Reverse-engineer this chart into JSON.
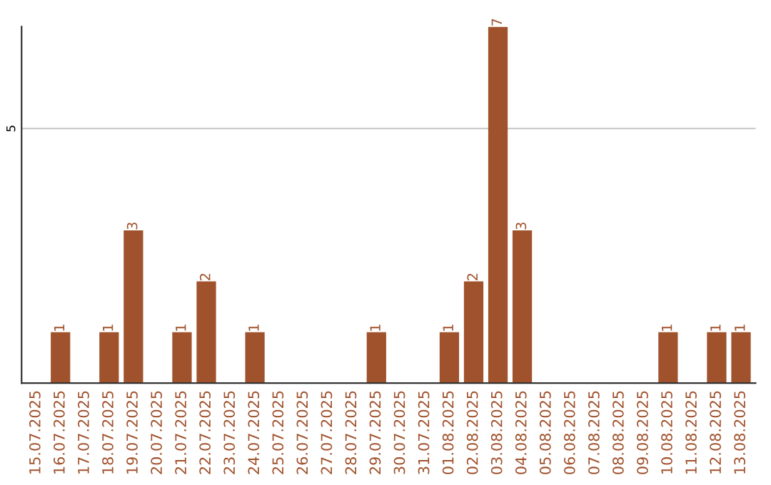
{
  "chart_data": {
    "type": "bar",
    "categories": [
      "15.07.2025",
      "16.07.2025",
      "17.07.2025",
      "18.07.2025",
      "19.07.2025",
      "20.07.2025",
      "21.07.2025",
      "22.07.2025",
      "23.07.2025",
      "24.07.2025",
      "25.07.2025",
      "26.07.2025",
      "27.07.2025",
      "28.07.2025",
      "29.07.2025",
      "30.07.2025",
      "31.07.2025",
      "01.08.2025",
      "02.08.2025",
      "03.08.2025",
      "04.08.2025",
      "05.08.2025",
      "06.08.2025",
      "07.08.2025",
      "08.08.2025",
      "09.08.2025",
      "10.08.2025",
      "11.08.2025",
      "12.08.2025",
      "13.08.2025"
    ],
    "values": [
      0,
      1,
      0,
      1,
      3,
      0,
      1,
      2,
      0,
      1,
      0,
      0,
      0,
      0,
      1,
      0,
      0,
      1,
      2,
      7,
      3,
      0,
      0,
      0,
      0,
      0,
      1,
      0,
      1,
      1
    ],
    "value_labels": [
      null,
      "1",
      null,
      "1",
      "3",
      null,
      "1",
      "2",
      null,
      "1",
      null,
      null,
      null,
      null,
      "1",
      null,
      null,
      "1",
      "2",
      "7",
      "3",
      null,
      null,
      null,
      null,
      null,
      "1",
      null,
      "1",
      "1"
    ],
    "color": "#a0522d",
    "ylim": [
      0,
      7
    ],
    "yticks": [
      5
    ],
    "grid": "y",
    "legend": false
  }
}
